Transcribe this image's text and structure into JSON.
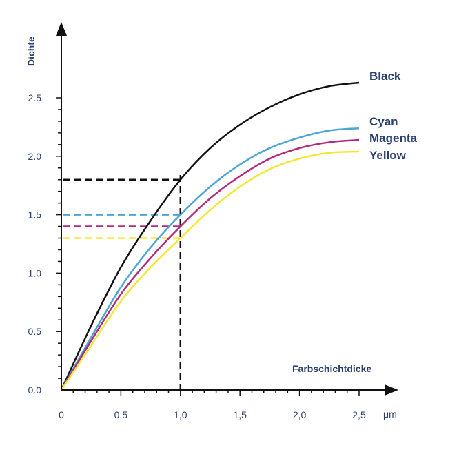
{
  "chart_data": {
    "type": "line",
    "xlabel": "Farbschichtdicke",
    "ylabel": "Dichte",
    "x_unit": "μm",
    "xlim": [
      0,
      2.5
    ],
    "ylim": [
      0,
      2.5
    ],
    "x_ticks": [
      {
        "value": 0,
        "label": "0"
      },
      {
        "value": 0.5,
        "label": "0,5"
      },
      {
        "value": 1.0,
        "label": "1,0"
      },
      {
        "value": 1.5,
        "label": "1,5"
      },
      {
        "value": 2.0,
        "label": "2,0"
      },
      {
        "value": 2.5,
        "label": "2,5"
      }
    ],
    "y_ticks": [
      {
        "value": 0,
        "label": "0.0"
      },
      {
        "value": 0.5,
        "label": "0.5"
      },
      {
        "value": 1.0,
        "label": "1.0"
      },
      {
        "value": 1.5,
        "label": "1.5"
      },
      {
        "value": 2.0,
        "label": "2.0"
      },
      {
        "value": 2.5,
        "label": "2.5"
      }
    ],
    "grid": false,
    "legend": "right, labels at line ends",
    "series": [
      {
        "name": "Black",
        "color": "#111111",
        "x": [
          0,
          0.25,
          0.5,
          0.75,
          1.0,
          1.25,
          1.5,
          1.75,
          2.0,
          2.25,
          2.5
        ],
        "y": [
          0,
          0.55,
          1.05,
          1.45,
          1.8,
          2.07,
          2.27,
          2.42,
          2.53,
          2.6,
          2.63
        ],
        "reference_y": 1.8
      },
      {
        "name": "Cyan",
        "color": "#4aa6d6",
        "x": [
          0,
          0.25,
          0.5,
          0.75,
          1.0,
          1.25,
          1.5,
          1.75,
          2.0,
          2.25,
          2.5
        ],
        "y": [
          0,
          0.45,
          0.88,
          1.22,
          1.5,
          1.74,
          1.93,
          2.07,
          2.16,
          2.22,
          2.24
        ],
        "reference_y": 1.5
      },
      {
        "name": "Magenta",
        "color": "#b5287a",
        "x": [
          0,
          0.25,
          0.5,
          0.75,
          1.0,
          1.25,
          1.5,
          1.75,
          2.0,
          2.25,
          2.5
        ],
        "y": [
          0,
          0.42,
          0.82,
          1.13,
          1.4,
          1.64,
          1.83,
          1.98,
          2.07,
          2.12,
          2.14
        ],
        "reference_y": 1.4
      },
      {
        "name": "Yellow",
        "color": "#f2e834",
        "x": [
          0,
          0.25,
          0.5,
          0.75,
          1.0,
          1.25,
          1.5,
          1.75,
          2.0,
          2.25,
          2.5
        ],
        "y": [
          0,
          0.38,
          0.76,
          1.05,
          1.3,
          1.54,
          1.74,
          1.89,
          1.98,
          2.03,
          2.04
        ],
        "reference_y": 1.3
      }
    ],
    "reference_x": 1.0
  }
}
